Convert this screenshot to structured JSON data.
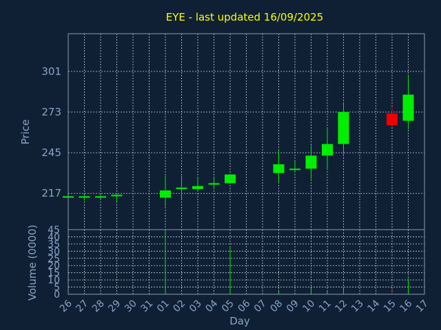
{
  "chart_data": {
    "type": "candlestick",
    "title": "EYE - last updated 16/09/2025",
    "ylabel": "Price",
    "volume_label": "Volume (0000)",
    "xlabel": "Day",
    "price_ticks": [
      217,
      245,
      273,
      301
    ],
    "price_range": [
      192,
      327
    ],
    "volume_ticks": [
      0,
      5,
      10,
      15,
      20,
      25,
      30,
      35,
      40,
      45
    ],
    "volume_range": [
      0,
      45
    ],
    "x_labels": [
      "26",
      "27",
      "28",
      "29",
      "30",
      "31",
      "01",
      "02",
      "03",
      "04",
      "05",
      "06",
      "07",
      "08",
      "09",
      "10",
      "11",
      "12",
      "13",
      "14",
      "15",
      "16",
      "17"
    ],
    "candles": [
      {
        "day": "26",
        "open": 214,
        "close": 215,
        "high": 215,
        "low": 214,
        "volume": 0,
        "color": "#00ee00"
      },
      {
        "day": "27",
        "open": 214,
        "close": 215,
        "high": 216,
        "low": 212,
        "volume": 0,
        "color": "#00ee00"
      },
      {
        "day": "28",
        "open": 214,
        "close": 215,
        "high": 216,
        "low": 213,
        "volume": 0,
        "color": "#00ee00"
      },
      {
        "day": "29",
        "open": 215,
        "close": 216,
        "high": 217,
        "low": 211,
        "volume": 0,
        "color": "#00ee00"
      },
      {
        "day": "01",
        "open": 214,
        "close": 219,
        "high": 229,
        "low": 208,
        "volume": 45,
        "color": "#00ee00"
      },
      {
        "day": "02",
        "open": 220,
        "close": 221,
        "high": 229,
        "low": 213,
        "volume": 1,
        "color": "#00ee00"
      },
      {
        "day": "03",
        "open": 220,
        "close": 222,
        "high": 228,
        "low": 218,
        "volume": 1,
        "color": "#00ee00"
      },
      {
        "day": "04",
        "open": 223,
        "close": 224,
        "high": 228,
        "low": 220,
        "volume": 1,
        "color": "#00ee00"
      },
      {
        "day": "05",
        "open": 224,
        "close": 230,
        "high": 230,
        "low": 224,
        "volume": 33,
        "color": "#00ee00"
      },
      {
        "day": "08",
        "open": 231,
        "close": 237,
        "high": 247,
        "low": 224,
        "volume": 2,
        "color": "#00ee00"
      },
      {
        "day": "09",
        "open": 234,
        "close": 234,
        "high": 239,
        "low": 232,
        "volume": 0,
        "color": "#00ee00"
      },
      {
        "day": "10",
        "open": 234,
        "close": 243,
        "high": 250,
        "low": 227,
        "volume": 4,
        "color": "#00ee00"
      },
      {
        "day": "11",
        "open": 243,
        "close": 251,
        "high": 262,
        "low": 233,
        "volume": 2,
        "color": "#00ee00"
      },
      {
        "day": "12",
        "open": 251,
        "close": 273,
        "high": 279,
        "low": 244,
        "volume": 4,
        "color": "#00ee00"
      },
      {
        "day": "15",
        "open": 272,
        "close": 264,
        "high": 277,
        "low": 264,
        "volume": 2,
        "color": "#ee0000"
      },
      {
        "day": "16",
        "open": 267,
        "close": 285,
        "high": 298,
        "low": 261,
        "volume": 11,
        "color": "#00ee00"
      }
    ],
    "colors": {
      "up": "#00ee00",
      "down": "#ee0000",
      "background": "#0f2035",
      "title": "#ffff00",
      "axis_text": "#8aa4c4"
    }
  }
}
